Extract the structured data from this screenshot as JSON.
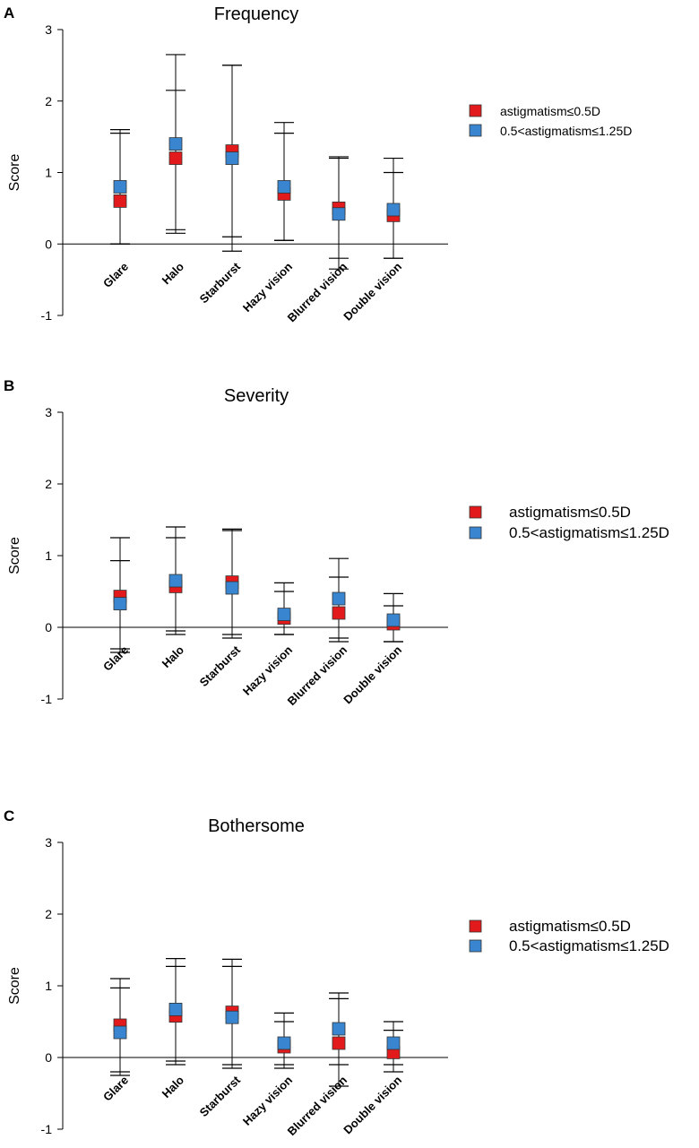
{
  "chart_data": [
    {
      "panel": "A",
      "type": "scatter",
      "title": "Frequency",
      "xlabel": "",
      "ylabel": "Score",
      "ylim": [
        -1,
        3
      ],
      "yticks": [
        "3",
        "2",
        "1",
        "0",
        "-1"
      ],
      "categories": [
        "Glare",
        "Halo",
        "Starburst",
        "Hazy vision",
        "Blurred vision",
        "Double vision"
      ],
      "legend": [
        "astigmatism≤0.5D",
        "0.5<astigmatism≤1.25D"
      ],
      "series": [
        {
          "name": "astigmatism≤0.5D",
          "color": "#e31a1c",
          "values": [
            0.6,
            1.2,
            1.3,
            0.7,
            0.5,
            0.4
          ],
          "upper": [
            1.55,
            2.15,
            2.5,
            1.55,
            1.2,
            1.0
          ],
          "lower": [
            0.0,
            0.2,
            -0.1,
            0.05,
            -0.2,
            -0.2
          ]
        },
        {
          "name": "0.5<astigmatism≤1.25D",
          "color": "#3a85d0",
          "values": [
            0.8,
            1.4,
            1.2,
            0.8,
            0.42,
            0.48
          ],
          "upper": [
            1.6,
            2.65,
            2.5,
            1.7,
            1.22,
            1.2
          ],
          "lower": [
            0.0,
            0.15,
            0.1,
            0.05,
            -0.35,
            -0.2
          ]
        }
      ]
    },
    {
      "panel": "B",
      "type": "scatter",
      "title": "Severity",
      "xlabel": "",
      "ylabel": "Score",
      "ylim": [
        -1,
        3
      ],
      "yticks": [
        "3",
        "2",
        "1",
        "0",
        "-1"
      ],
      "categories": [
        "Glare",
        "Halo",
        "Starburst",
        "Hazy vision",
        "Blurred vision",
        "Double vision"
      ],
      "legend": [
        "astigmatism≤0.5D",
        "0.5<astigmatism≤1.25D"
      ],
      "series": [
        {
          "name": "astigmatism≤0.5D",
          "color": "#e31a1c",
          "values": [
            0.43,
            0.57,
            0.63,
            0.13,
            0.2,
            0.05
          ],
          "upper": [
            0.93,
            1.25,
            1.35,
            0.5,
            0.7,
            0.3
          ],
          "lower": [
            -0.3,
            -0.1,
            -0.1,
            -0.1,
            -0.15,
            -0.2
          ]
        },
        {
          "name": "0.5<astigmatism≤1.25D",
          "color": "#3a85d0",
          "values": [
            0.33,
            0.65,
            0.55,
            0.18,
            0.4,
            0.1
          ],
          "upper": [
            1.25,
            1.4,
            1.37,
            0.62,
            0.96,
            0.47
          ],
          "lower": [
            -0.35,
            -0.05,
            -0.15,
            -0.1,
            -0.2,
            -0.2
          ]
        }
      ]
    },
    {
      "panel": "C",
      "type": "scatter",
      "title": "Bothersome",
      "xlabel": "",
      "ylabel": "Score",
      "ylim": [
        -1,
        3
      ],
      "yticks": [
        "3",
        "2",
        "1",
        "0",
        "-1"
      ],
      "categories": [
        "Glare",
        "Halo",
        "Starburst",
        "Hazy vision",
        "Blurred vision",
        "Double vision"
      ],
      "legend": [
        "astigmatism≤0.5D",
        "0.5<astigmatism≤1.25D"
      ],
      "series": [
        {
          "name": "astigmatism≤0.5D",
          "color": "#e31a1c",
          "values": [
            0.45,
            0.58,
            0.63,
            0.15,
            0.2,
            0.07
          ],
          "upper": [
            1.1,
            1.27,
            1.27,
            0.5,
            0.82,
            0.38
          ],
          "lower": [
            -0.25,
            -0.1,
            -0.1,
            -0.1,
            -0.1,
            -0.1
          ]
        },
        {
          "name": "0.5<astigmatism≤1.25D",
          "color": "#3a85d0",
          "values": [
            0.35,
            0.67,
            0.56,
            0.2,
            0.4,
            0.2
          ],
          "upper": [
            0.97,
            1.38,
            1.37,
            0.62,
            0.9,
            0.5
          ],
          "lower": [
            -0.2,
            -0.05,
            -0.15,
            -0.15,
            -0.4,
            -0.2
          ]
        }
      ]
    }
  ]
}
